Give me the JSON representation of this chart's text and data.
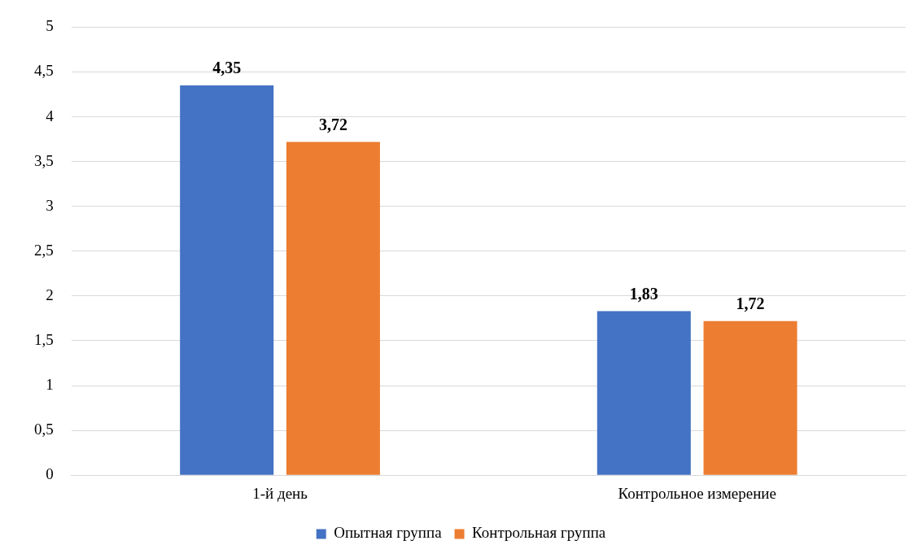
{
  "chart_data": {
    "type": "bar",
    "categories": [
      "1-й день",
      "Контрольное измерение"
    ],
    "series": [
      {
        "name": "Опытная группа",
        "color": "#4472c4",
        "values": [
          4.35,
          1.83
        ],
        "value_labels": [
          "4,35",
          "1,83"
        ]
      },
      {
        "name": "Контрольная группа",
        "color": "#ed7d31",
        "values": [
          3.72,
          1.72
        ],
        "value_labels": [
          "3,72",
          "1,72"
        ]
      }
    ],
    "ylim": [
      0,
      5
    ],
    "yticks": [
      0,
      {
        "value": 0.5,
        "label": "0,5"
      },
      1,
      {
        "value": 1.5,
        "label": "1,5"
      },
      2,
      {
        "value": 2.5,
        "label": "2,5"
      },
      3,
      {
        "value": 3.5,
        "label": "3,5"
      },
      4,
      {
        "value": 4.5,
        "label": "4,5"
      },
      5
    ],
    "grid": "y",
    "legend": "bottom"
  }
}
